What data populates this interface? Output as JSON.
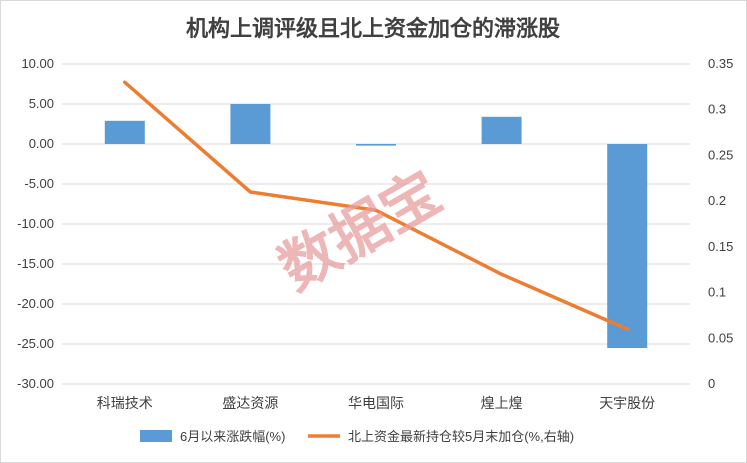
{
  "chart_data": {
    "type": "bar",
    "title": "机构上调评级且北上资金加仓的滞涨股",
    "categories": [
      "科瑞技术",
      "盛达资源",
      "华电国际",
      "煌上煌",
      "天宇股份"
    ],
    "series": [
      {
        "name": "6月以来涨跌幅(%)",
        "type": "bar",
        "axis": "left",
        "color": "#5b9bd5",
        "values": [
          2.9,
          5.0,
          -0.2,
          3.4,
          -25.5
        ]
      },
      {
        "name": "北上资金最新持仓较5月末加仓(%,右轴)",
        "type": "line",
        "axis": "right",
        "color": "#ed7d31",
        "values": [
          0.33,
          0.21,
          0.19,
          0.12,
          0.06
        ]
      }
    ],
    "y_left": {
      "range": [
        -30,
        10
      ],
      "ticks": [
        "10.00",
        "5.00",
        "0.00",
        "-5.00",
        "-10.00",
        "-15.00",
        "-20.00",
        "-25.00",
        "-30.00"
      ],
      "tick_values": [
        10,
        5,
        0,
        -5,
        -10,
        -15,
        -20,
        -25,
        -30
      ]
    },
    "y_right": {
      "range": [
        0,
        0.35
      ],
      "ticks": [
        "0.35",
        "0.3",
        "0.25",
        "0.2",
        "0.15",
        "0.1",
        "0.05",
        "0"
      ],
      "tick_values": [
        0.35,
        0.3,
        0.25,
        0.2,
        0.15,
        0.1,
        0.05,
        0
      ]
    },
    "grid": true,
    "legend_position": "bottom",
    "watermark": "数据宝"
  }
}
